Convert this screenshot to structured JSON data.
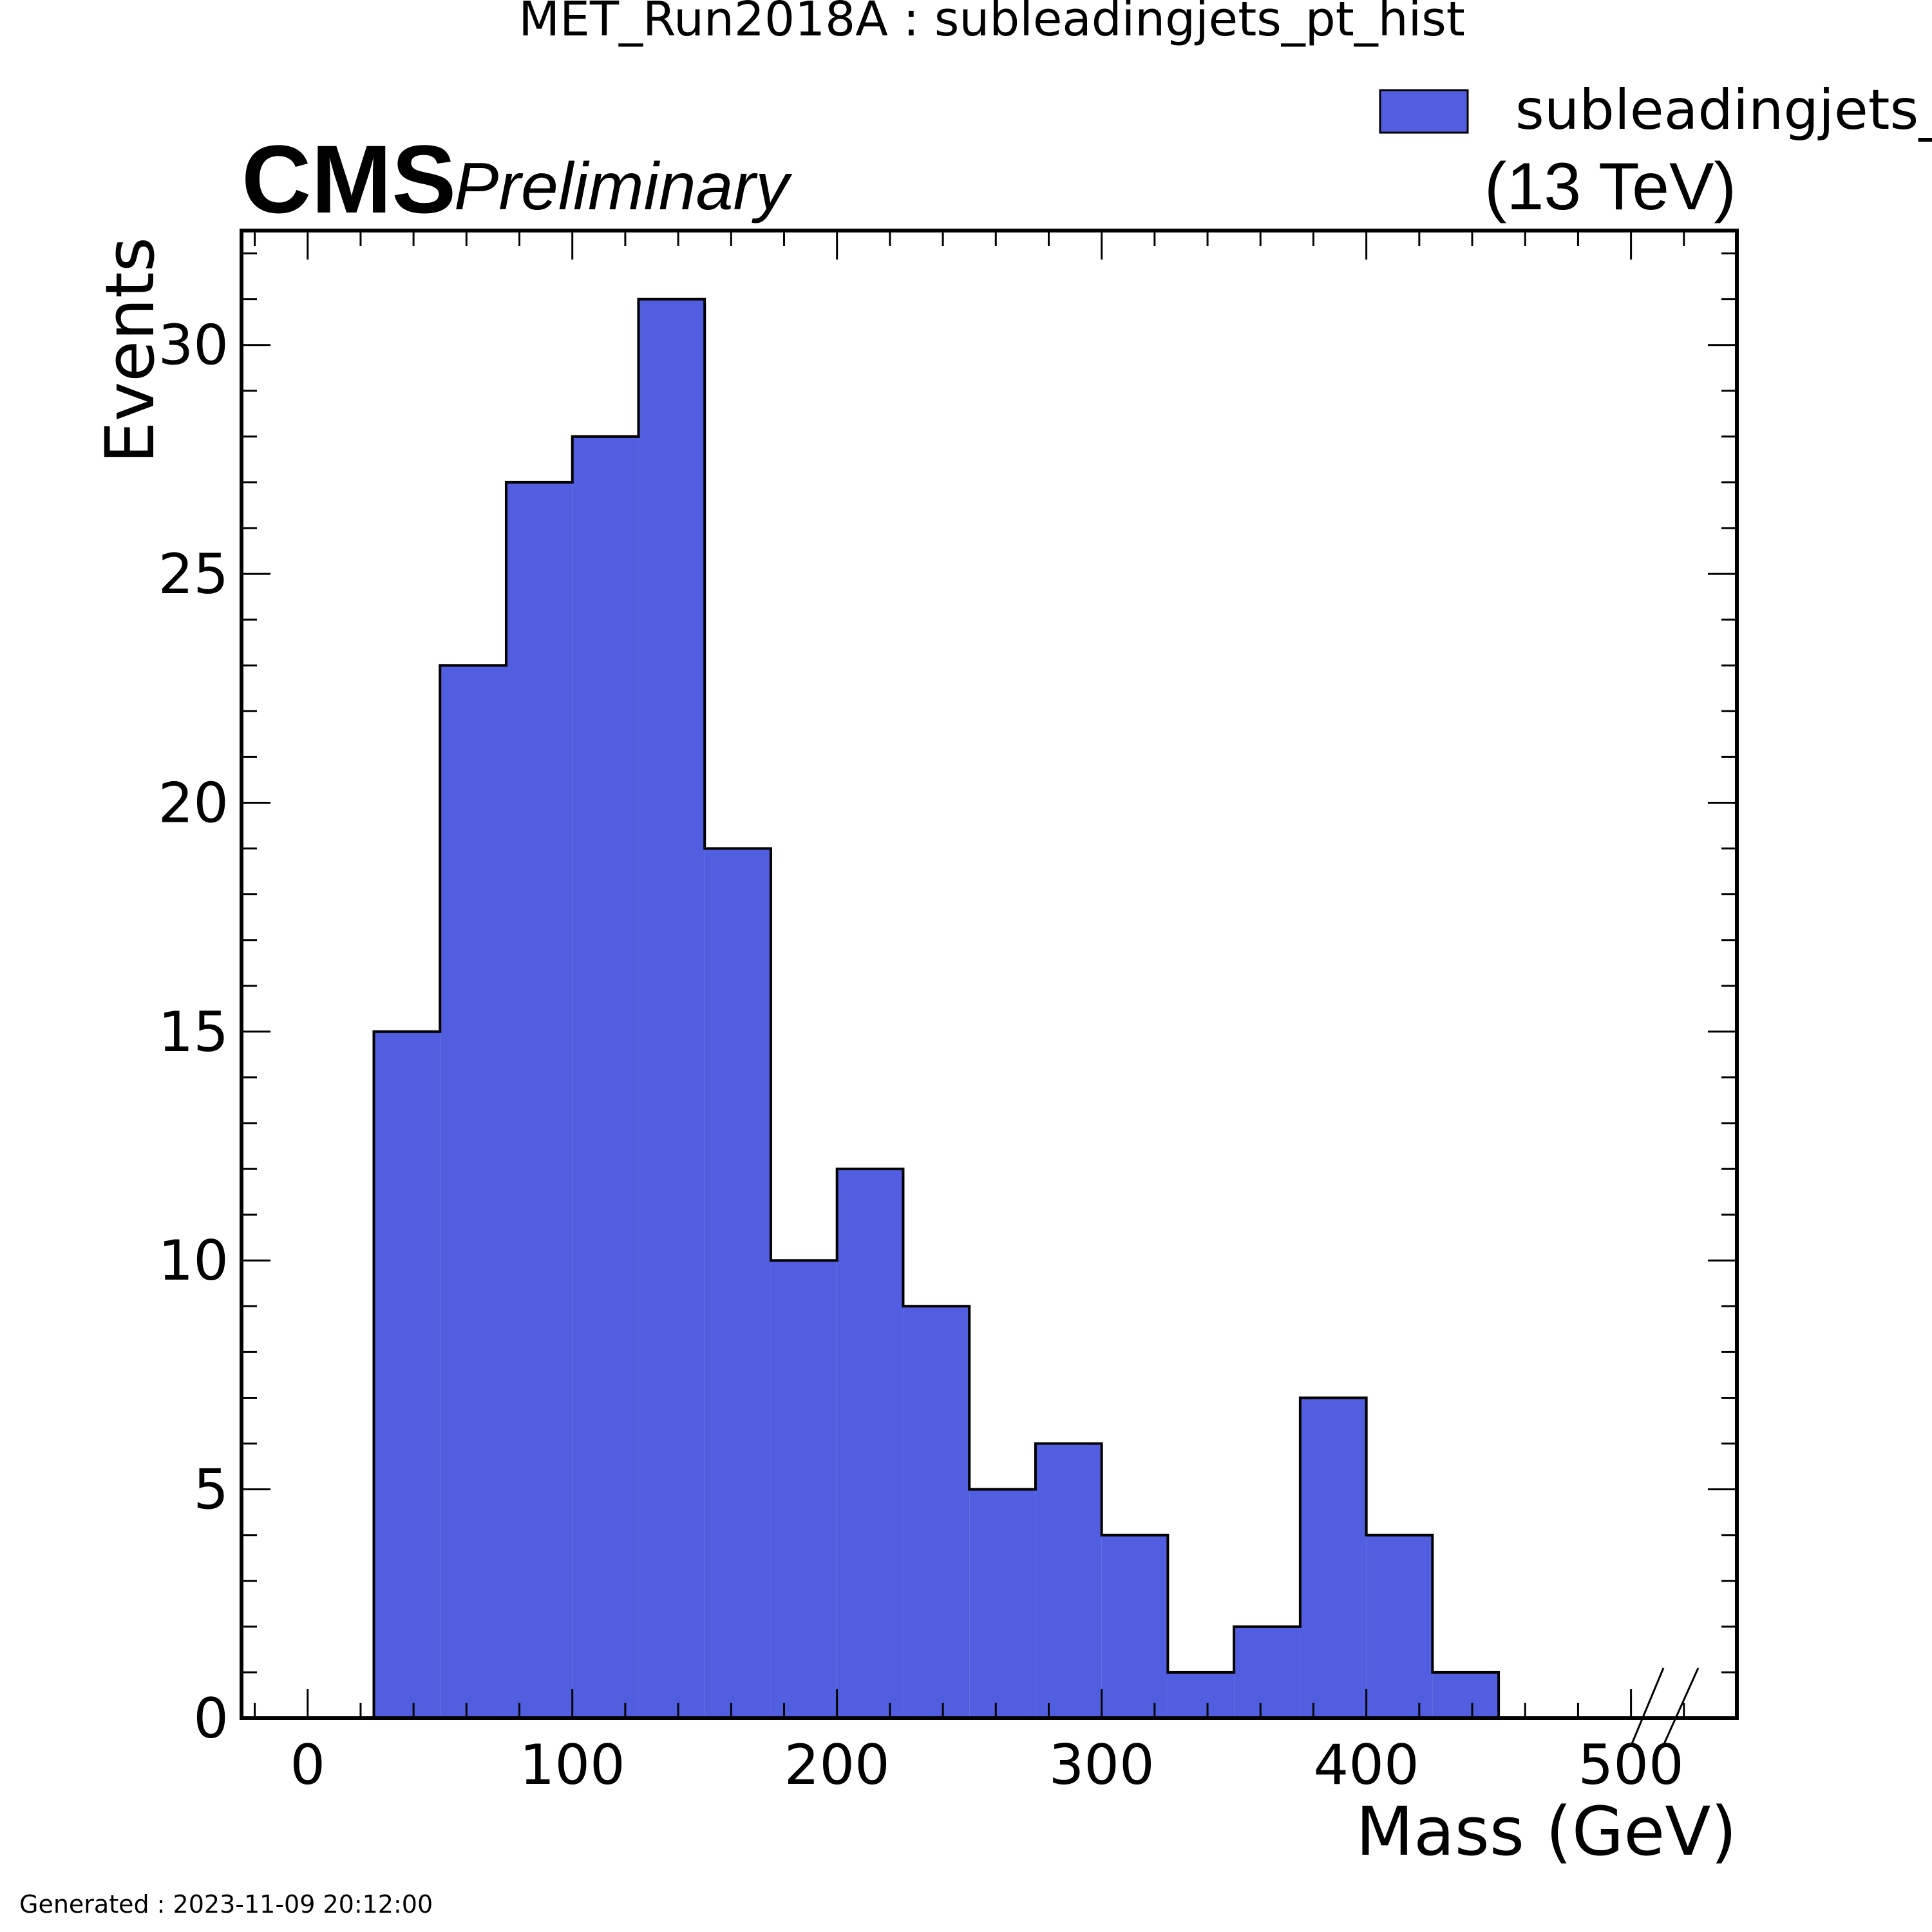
{
  "chart_data": {
    "type": "bar",
    "title": "MET_Run2018A : subleadingjets_pt_hist",
    "experiment_label": "CMS",
    "status_label": "Preliminary",
    "energy_label": "(13 TeV)",
    "xlabel": "Mass (GeV)",
    "ylabel": "Events",
    "footer": "Generated : 2023-11-09 20:12:00",
    "legend": {
      "position": "top-right",
      "entries": [
        {
          "label": "subleadingjets_",
          "color": "#525ee0"
        }
      ]
    },
    "xlim": [
      -25,
      540
    ],
    "ylim": [
      0,
      32.5
    ],
    "x_ticks": [
      "0",
      "100",
      "200",
      "300",
      "400",
      "500"
    ],
    "y_ticks": [
      "0",
      "5",
      "10",
      "15",
      "20",
      "25",
      "30"
    ],
    "grid": false,
    "bin_edges": [
      25,
      50,
      75,
      100,
      125,
      150,
      175,
      200,
      225,
      250,
      275,
      300,
      325,
      350,
      375,
      400,
      425,
      450
    ],
    "values": [
      15,
      23,
      27,
      28,
      31,
      19,
      10,
      12,
      9,
      5,
      6,
      4,
      1,
      2,
      7,
      4,
      1
    ],
    "colors": {
      "fill": "#525ee0",
      "edge": "#000000"
    }
  }
}
